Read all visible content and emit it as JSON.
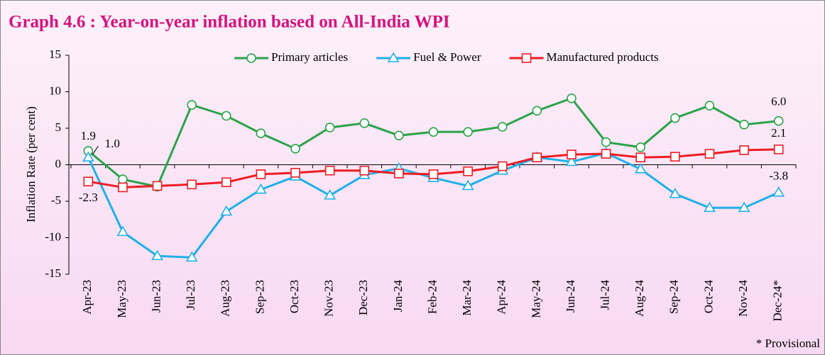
{
  "chart_data": {
    "type": "line",
    "title": "Graph 4.6 : Year-on-year inflation based on All-India WPI",
    "y_label": "Inflation Rate  (per cent)",
    "annotation": "* Provisional",
    "categories": [
      "Apr-23",
      "May-23",
      "Jun-23",
      "Jul-23",
      "Aug-23",
      "Sep-23",
      "Oct-23",
      "Nov-23",
      "Dec-23",
      "Jan-24",
      "Feb-24",
      "Mar-24",
      "Apr-24",
      "May-24",
      "Jun-24",
      "Jul-24",
      "Aug-24",
      "Sep-24",
      "Oct-24",
      "Nov-24",
      "Dec-24*"
    ],
    "ylim": [
      -15,
      15
    ],
    "yticks": [
      -15,
      -10,
      -5,
      0,
      5,
      10,
      15
    ],
    "legend": "top",
    "series": [
      {
        "name": "Primary articles",
        "color": "#2ca24a",
        "marker": "circle",
        "values": [
          1.9,
          -2.0,
          -3.0,
          8.2,
          6.7,
          4.3,
          2.2,
          5.1,
          5.7,
          4.0,
          4.5,
          4.5,
          5.2,
          7.4,
          9.1,
          3.1,
          2.4,
          6.4,
          8.1,
          5.5,
          6.0
        ],
        "value_labels": [
          "1.9",
          null,
          null,
          null,
          null,
          null,
          null,
          null,
          null,
          null,
          null,
          null,
          null,
          null,
          null,
          null,
          null,
          null,
          null,
          null,
          "6.0"
        ]
      },
      {
        "name": "Fuel & Power",
        "color": "#1fb0e6",
        "marker": "triangle",
        "values": [
          1.0,
          -9.2,
          -12.5,
          -12.7,
          -6.4,
          -3.4,
          -1.6,
          -4.2,
          -1.4,
          -0.5,
          -1.8,
          -2.9,
          -0.8,
          1.0,
          0.4,
          1.6,
          -0.6,
          -4.0,
          -5.9,
          -5.9,
          -3.8
        ],
        "value_labels": [
          "1.0",
          null,
          null,
          null,
          null,
          null,
          null,
          null,
          null,
          null,
          null,
          null,
          null,
          null,
          null,
          null,
          null,
          null,
          null,
          null,
          "-3.8"
        ]
      },
      {
        "name": "Manufactured products",
        "color": "#ee1c25",
        "marker": "square",
        "values": [
          -2.3,
          -3.1,
          -2.9,
          -2.7,
          -2.4,
          -1.3,
          -1.1,
          -0.8,
          -0.8,
          -1.2,
          -1.3,
          -0.9,
          -0.2,
          1.0,
          1.4,
          1.5,
          1.0,
          1.1,
          1.5,
          2.0,
          2.1
        ],
        "value_labels": [
          "-2.3",
          null,
          null,
          null,
          null,
          null,
          null,
          null,
          null,
          null,
          null,
          null,
          null,
          null,
          null,
          null,
          null,
          null,
          null,
          null,
          "2.1"
        ]
      }
    ]
  }
}
